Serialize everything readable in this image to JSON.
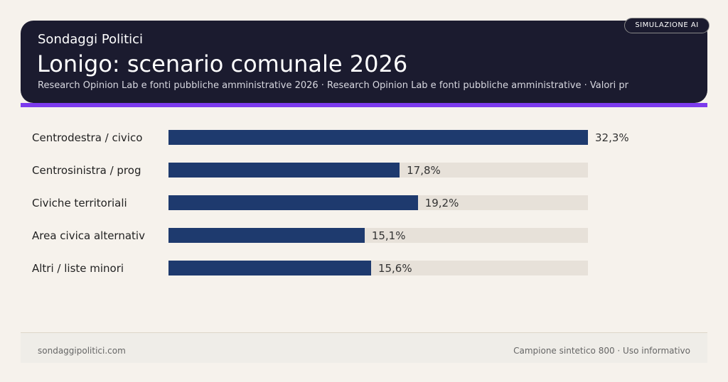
{
  "header": {
    "brand": "Sondaggi Politici",
    "title": "Lonigo: scenario comunale 2026",
    "subtitle": "Research Opinion Lab e fonti pubbliche amministrative 2026 · Research Opinion Lab e fonti pubbliche amministrative · Valori pr",
    "badge": "SIMULAZIONE AI"
  },
  "colors": {
    "header_bg": "#1b1b2f",
    "accent": "#7c3aed",
    "bar": "#1e3a6e",
    "track": "#e7e1d9"
  },
  "chart_data": {
    "type": "bar",
    "orientation": "horizontal",
    "categories": [
      "Centrodestra / civico",
      "Centrosinistra / prog",
      "Civiche territoriali",
      "Area civica alternativ",
      "Altri / liste minori"
    ],
    "values": [
      32.3,
      17.8,
      19.2,
      15.1,
      15.6
    ],
    "value_labels": [
      "32,3%",
      "17,8%",
      "19,2%",
      "15,1%",
      "15,6%"
    ],
    "xlim": [
      0,
      32.3
    ],
    "grid": false,
    "legend": "none"
  },
  "footer": {
    "left": "sondaggipolitici.com",
    "right": "Campione sintetico 800 · Uso informativo"
  }
}
